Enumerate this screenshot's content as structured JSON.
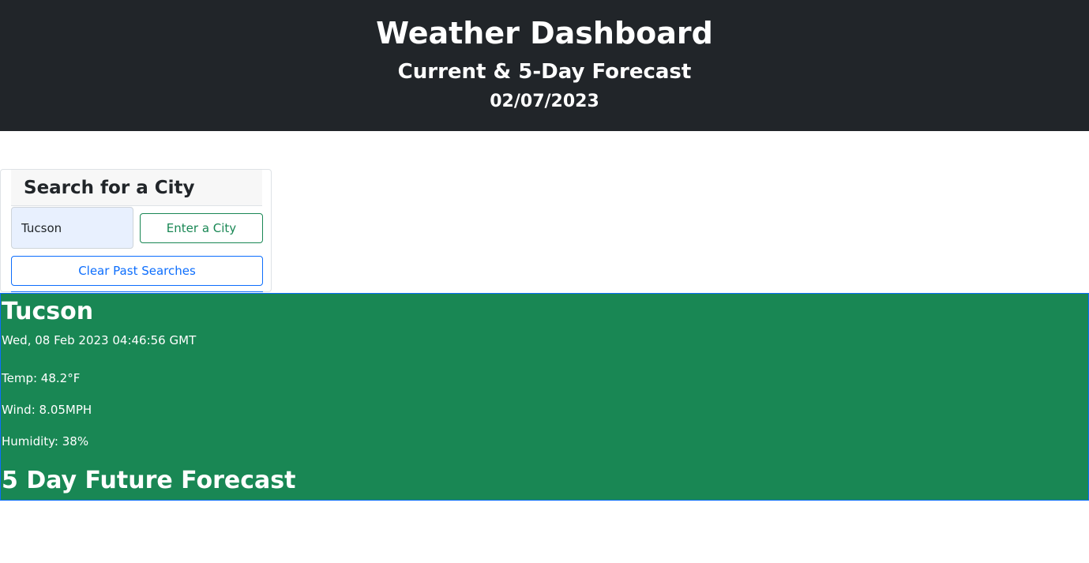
{
  "header": {
    "title": "Weather Dashboard",
    "subtitle": "Current & 5-Day Forecast",
    "date": "02/07/2023"
  },
  "search": {
    "title": "Search for a City",
    "input_value": "Tucson",
    "enter_button": "Enter a City",
    "clear_button": "Clear Past Searches"
  },
  "current": {
    "city": "Tucson",
    "datetime": "Wed, 08 Feb 2023 04:46:56 GMT",
    "temp": "Temp: 48.2°F",
    "wind": "Wind: 8.05MPH",
    "humidity": "Humidity: 38%"
  },
  "forecast": {
    "title": "5 Day Future Forecast"
  },
  "colors": {
    "header_bg": "#212529",
    "panel_bg": "#198754",
    "success": "#198754",
    "primary": "#0d6efd"
  }
}
